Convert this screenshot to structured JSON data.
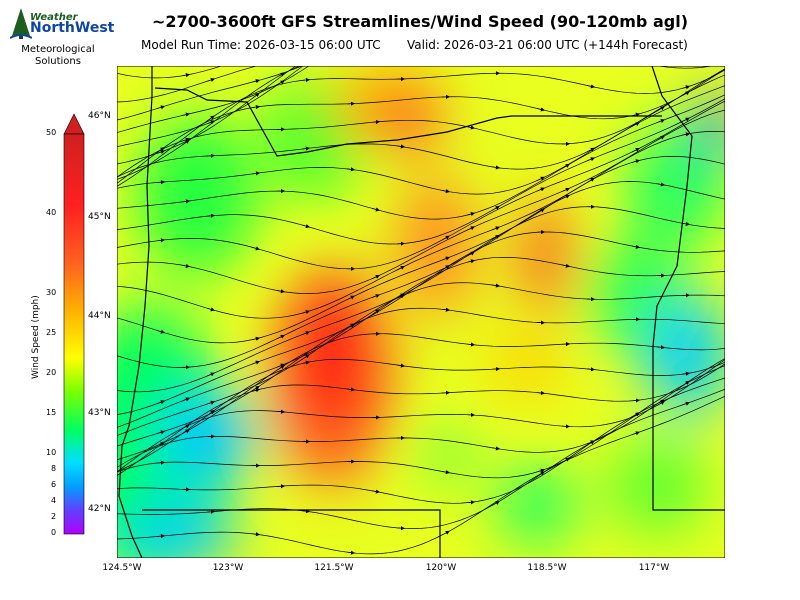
{
  "header": {
    "title": "~2700-3600ft GFS Streamlines/Wind Speed (90-120mb agl)",
    "model_run": "Model Run Time: 2026-03-15 06:00 UTC",
    "valid": "Valid: 2026-03-21 06:00 UTC  (+144h Forecast)"
  },
  "logo": {
    "line1": "Weather",
    "line2": "NorthWest",
    "line3": "Meteorological",
    "line4": "Solutions"
  },
  "colorbar": {
    "label": "Wind Speed (mph)",
    "ticks": [
      "0",
      "2",
      "4",
      "6",
      "8",
      "10",
      "15",
      "20",
      "25",
      "30",
      "40",
      "50"
    ]
  },
  "map": {
    "lat_labels": [
      "46°N",
      "45°N",
      "44°N",
      "43°N",
      "42°N"
    ],
    "lon_labels": [
      "124.5°W",
      "123°W",
      "121.5°W",
      "120°W",
      "118.5°W",
      "117°W"
    ],
    "colors": {
      "calm": "#a020f0",
      "low": "#00c8ff",
      "mid": "#00ff40",
      "moderate": "#ffff00",
      "high": "#ff8c00",
      "max": "#ff0000"
    }
  }
}
